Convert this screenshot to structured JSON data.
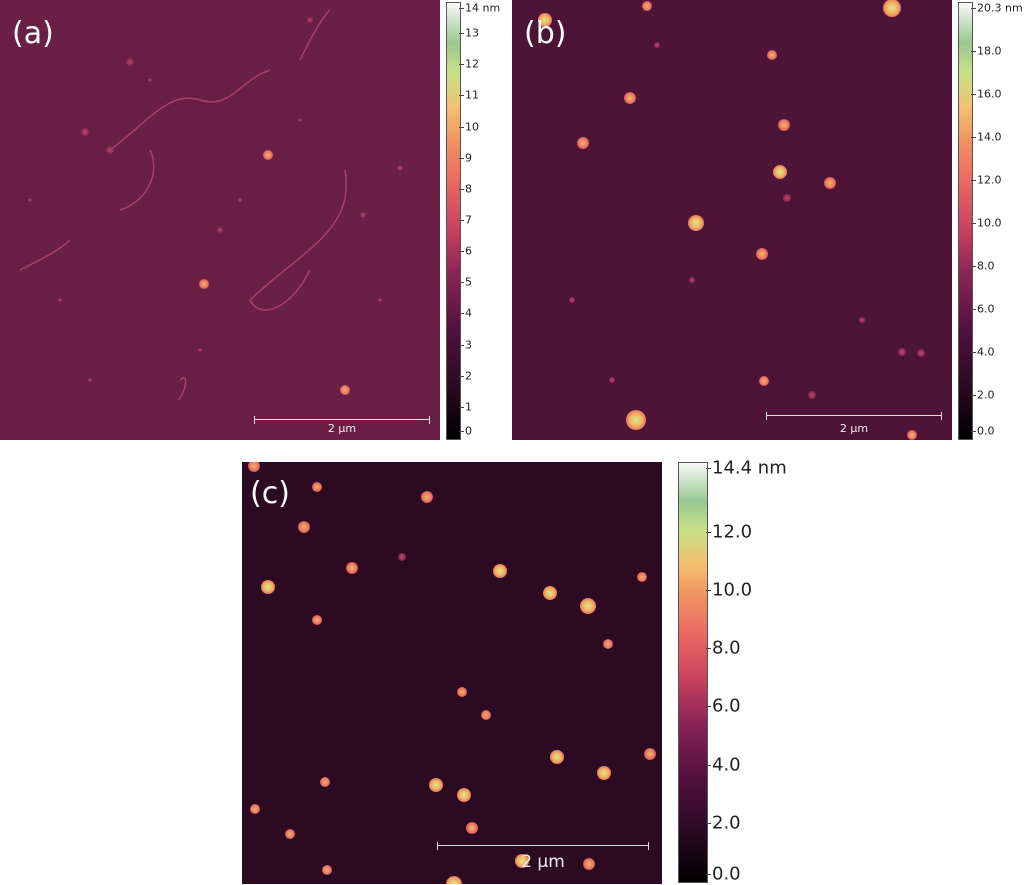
{
  "panels": [
    {
      "label": "(a)",
      "scale_bar": "2 µm",
      "colorbar": {
        "min": 0,
        "max": 14,
        "unit_label": "14 nm",
        "ticks": [
          "0",
          "1",
          "2",
          "3",
          "4",
          "5",
          "6",
          "7",
          "8",
          "9",
          "10",
          "11",
          "12",
          "13"
        ]
      }
    },
    {
      "label": "(b)",
      "scale_bar": "2 µm",
      "colorbar": {
        "min": 0,
        "max": 20.3,
        "unit_label": "20.3 nm",
        "ticks": [
          "0.0",
          "2.0",
          "4.0",
          "6.0",
          "8.0",
          "10.0",
          "12.0",
          "14.0",
          "16.0",
          "18.0"
        ]
      }
    },
    {
      "label": "(c)",
      "scale_bar": "2 µm",
      "colorbar": {
        "min": 0,
        "max": 14.4,
        "unit_label": "14.4 nm",
        "ticks": [
          "0.0",
          "2.0",
          "4.0",
          "6.0",
          "8.0",
          "10.0",
          "12.0"
        ]
      }
    }
  ],
  "colors": {
    "bg_a": "#6a1f47",
    "bg_b": "#4e1438",
    "bg_c": "#2b0a22"
  }
}
